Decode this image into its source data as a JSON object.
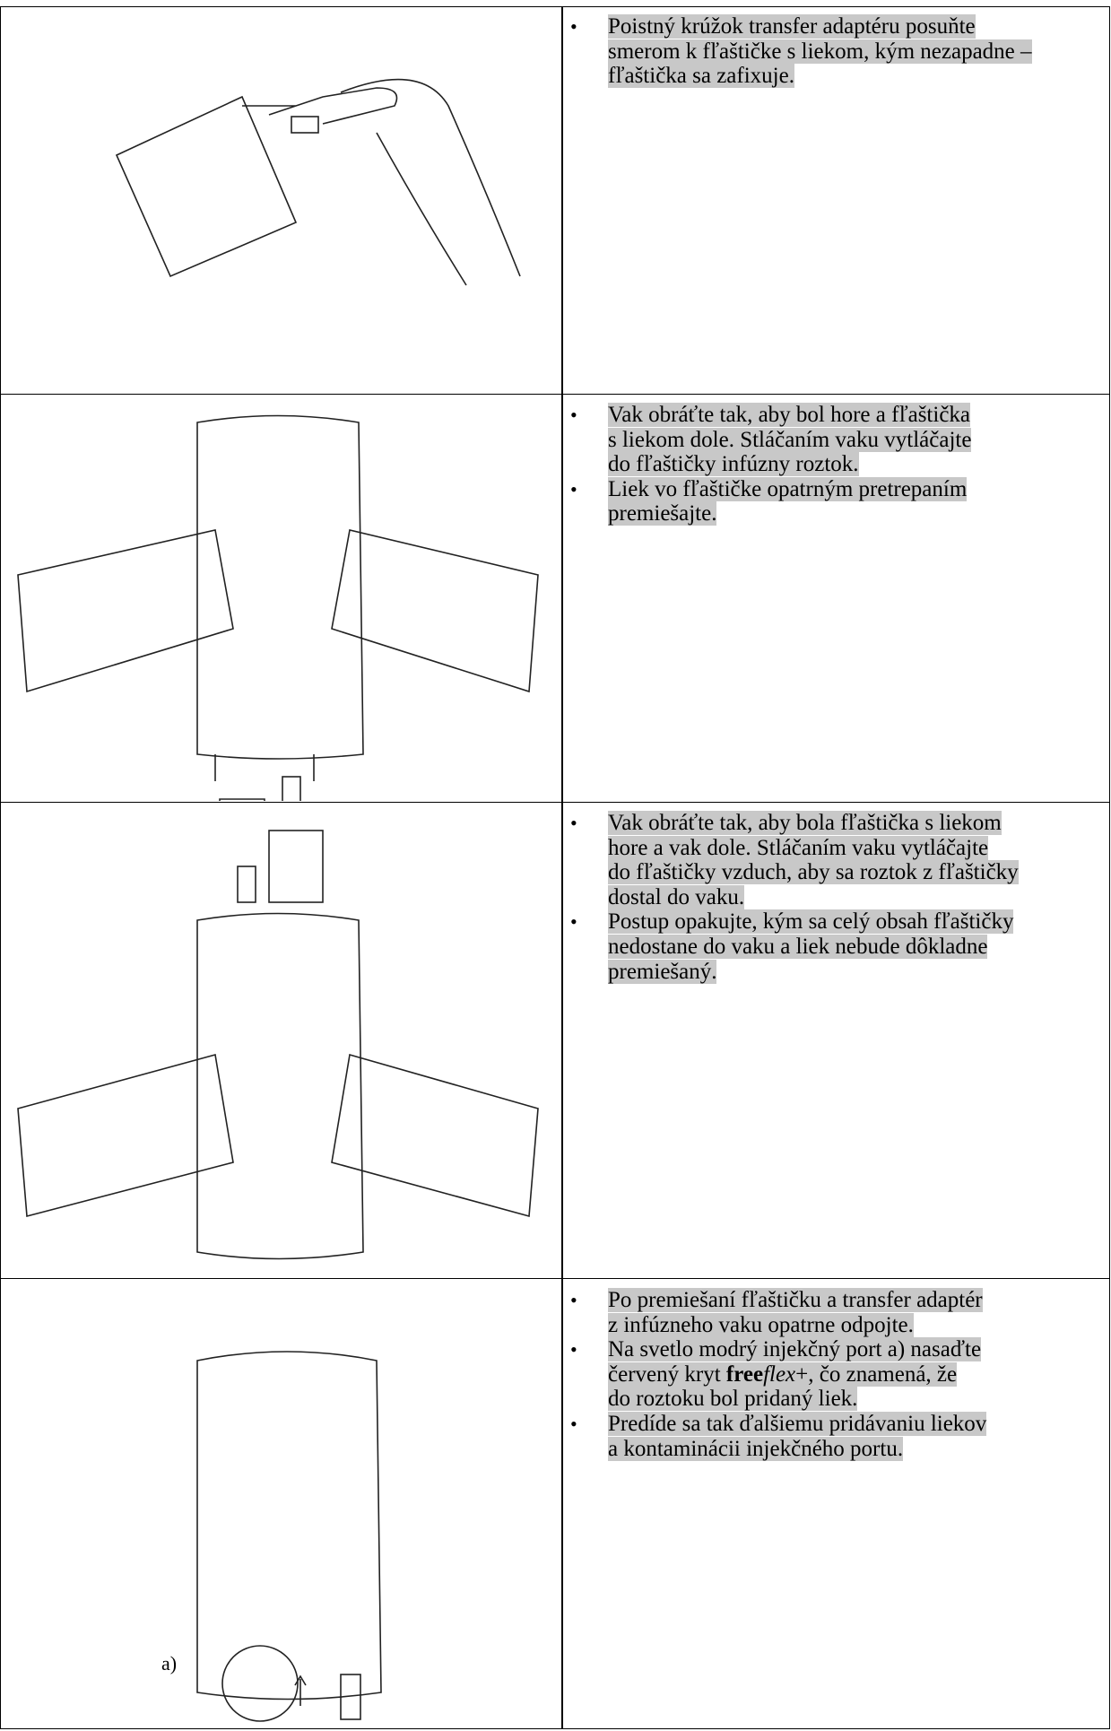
{
  "table": {
    "rows": [
      {
        "bullets": [
          [
            "Poistný krúžok transfer adaptéru posuňte",
            "smerom k fľaštičke s liekom, kým nezapadne –",
            "fľaštička sa zafixuje."
          ]
        ]
      },
      {
        "bullets": [
          [
            "Vak obráťte tak, aby bol hore a fľaštička",
            "s liekom dole. Stláčaním vaku vytláčajte",
            "do fľaštičky infúzny roztok."
          ],
          [
            "Liek vo fľaštičke opatrným pretrepaním",
            "premiešajte."
          ]
        ]
      },
      {
        "bullets": [
          [
            "Vak obráťte tak, aby bola fľaštička s liekom",
            "hore a vak dole. Stláčaním vaku vytláčajte",
            "do fľaštičky vzduch, aby sa roztok z fľaštičky",
            "dostal do vaku."
          ],
          [
            "Postup opakujte, kým sa celý obsah fľaštičky",
            "nedostane do vaku a liek nebude dôkladne",
            "premiešaný."
          ]
        ]
      },
      {
        "bullets": [
          [
            "Po premiešaní fľaštičku a transfer adaptér",
            "z infúzneho vaku opatrne odpojte."
          ],
          [
            "Na svetlo modrý injekčný port a) nasaďte",
            {
              "parts": [
                "červený kryt ",
                "free",
                "flex",
                "+, čo znamená, že"
              ]
            },
            "do roztoku bol pridaný liek."
          ],
          [
            "Predíde sa tak ďalšiemu pridávaniu liekov",
            "a kontaminácii injekčného portu."
          ]
        ],
        "figure_label": "a)"
      }
    ]
  }
}
